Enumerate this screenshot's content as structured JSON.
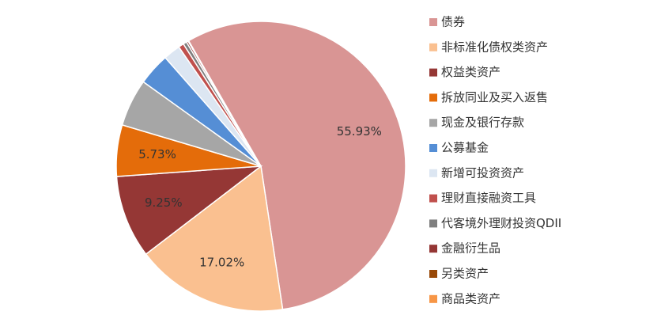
{
  "chart_data": {
    "type": "pie",
    "categories": [
      "债券",
      "非标准化债权类资产",
      "权益类资产",
      "拆放同业及买入返售",
      "现金及银行存款",
      "公募基金",
      "新增可投资资产",
      "理财直接融资工具",
      "代客境外理财投资QDII",
      "金融衍生品",
      "另类资产",
      "商品类资产"
    ],
    "values": [
      55.93,
      17.02,
      9.25,
      5.73,
      5.3,
      3.6,
      1.9,
      0.6,
      0.4,
      0.2,
      0.05,
      0.02
    ],
    "value_labels": [
      "55.93%",
      "17.02%",
      "9.25%",
      "5.73%",
      null,
      null,
      null,
      null,
      null,
      null,
      null,
      null
    ],
    "colors": [
      "#d99594",
      "#fac090",
      "#953735",
      "#e46c0a",
      "#a6a6a6",
      "#558ed5",
      "#dce6f2",
      "#c0504d",
      "#7f7f7f",
      "#943634",
      "#984807",
      "#f79646"
    ],
    "legend": "right"
  }
}
